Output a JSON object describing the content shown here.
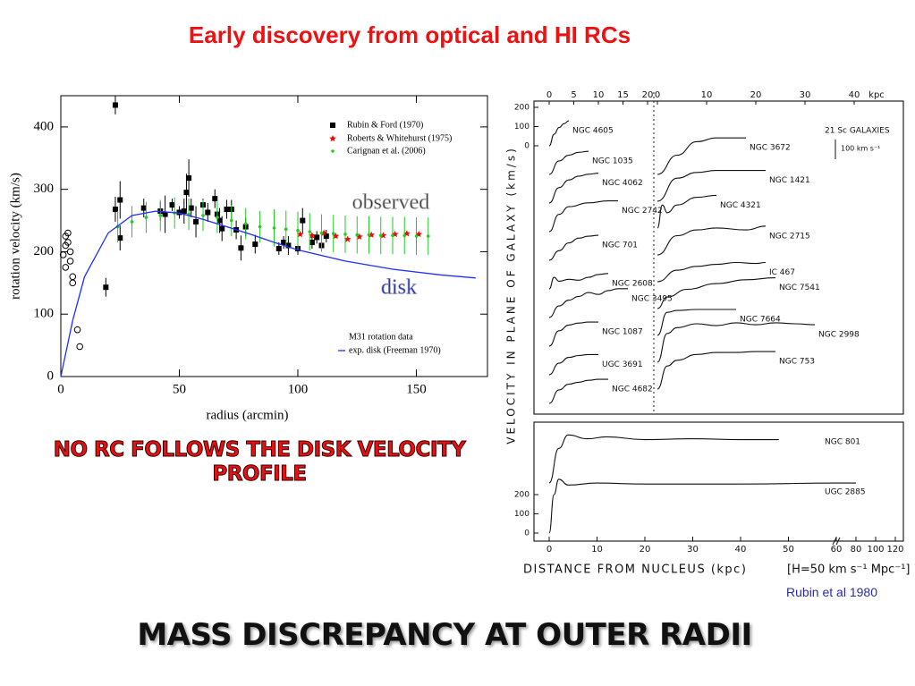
{
  "slide": {
    "title": "Early discovery from optical and HI RCs",
    "left_caption": "NO RC FOLLOWS THE DISK VELOCITY PROFILE",
    "bottom_caption": "MASS DISCREPANCY AT OUTER RADII",
    "credit": "Rubin et al 1980"
  },
  "chart_data": [
    {
      "type": "scatter",
      "legend_title": "M31 rotation data",
      "xlabel": "radius (arcmin)",
      "ylabel": "rotation velocity (km/s)",
      "xlim": [
        0,
        180
      ],
      "ylim": [
        0,
        450
      ],
      "xticks": [
        0,
        50,
        100,
        150
      ],
      "yticks": [
        0,
        100,
        200,
        300,
        400
      ],
      "annotations": [
        "observed",
        "disk"
      ],
      "series": [
        {
          "name": "Rubin & Ford (1970)",
          "color": "#000000",
          "marker": "square",
          "x": [
            19,
            23,
            23,
            25,
            25,
            35,
            42,
            44,
            47,
            50,
            52,
            53,
            54,
            55,
            57,
            60,
            62,
            65,
            66,
            67,
            68,
            70,
            72,
            74,
            76,
            78,
            82,
            92,
            94,
            96,
            100,
            102,
            106,
            108,
            110,
            112
          ],
          "values": [
            143,
            435,
            268,
            283,
            222,
            270,
            265,
            260,
            275,
            263,
            265,
            295,
            318,
            270,
            248,
            275,
            263,
            285,
            260,
            250,
            237,
            268,
            268,
            235,
            206,
            240,
            212,
            205,
            215,
            210,
            205,
            250,
            215,
            223,
            210,
            225
          ],
          "errors": [
            15,
            15,
            20,
            30,
            20,
            15,
            15,
            30,
            10,
            10,
            20,
            30,
            30,
            15,
            25,
            10,
            15,
            15,
            10,
            20,
            20,
            15,
            15,
            15,
            20,
            15,
            15,
            10,
            10,
            15,
            10,
            20,
            10,
            10,
            10,
            10
          ]
        },
        {
          "name": "Roberts & Whitehurst (1975)",
          "color": "#ff0000",
          "marker": "star",
          "x": [
            101,
            106,
            111,
            116,
            121,
            126,
            131,
            136,
            141,
            146,
            151
          ],
          "values": [
            228,
            226,
            230,
            225,
            220,
            224,
            227,
            226,
            228,
            229,
            228
          ]
        },
        {
          "name": "Carignan et al. (2006)",
          "color": "#22cc22",
          "marker": "dot",
          "x": [
            24,
            30,
            36,
            42,
            48,
            54,
            60,
            66,
            72,
            78,
            84,
            90,
            95,
            100,
            105,
            110,
            115,
            120,
            125,
            130,
            135,
            140,
            145,
            150,
            155
          ],
          "values": [
            240,
            248,
            255,
            258,
            262,
            260,
            258,
            255,
            250,
            245,
            240,
            238,
            236,
            234,
            232,
            230,
            229,
            228,
            227,
            227,
            226,
            226,
            226,
            225,
            225
          ],
          "errors": [
            25,
            25,
            25,
            25,
            25,
            25,
            25,
            25,
            25,
            25,
            25,
            30,
            30,
            30,
            30,
            30,
            30,
            30,
            30,
            30,
            30,
            30,
            30,
            30,
            30
          ]
        },
        {
          "color": "#000000",
          "marker": "open-circle",
          "x": [
            1,
            2,
            2,
            3,
            3,
            4,
            4,
            5,
            5,
            7,
            8,
            2
          ],
          "values": [
            195,
            210,
            225,
            230,
            215,
            185,
            200,
            150,
            160,
            75,
            48,
            175
          ]
        },
        {
          "name": "exp. disk (Freeman 1970)",
          "color": "#1f2fff",
          "marker": "line",
          "x": [
            0,
            5,
            10,
            20,
            30,
            40,
            50,
            60,
            70,
            80,
            90,
            100,
            120,
            140,
            160,
            175
          ],
          "values": [
            0,
            90,
            160,
            230,
            258,
            265,
            262,
            252,
            240,
            228,
            215,
            203,
            185,
            172,
            163,
            158
          ]
        }
      ]
    },
    {
      "type": "line",
      "ylabel": "VELOCITY IN PLANE OF GALAXY (km/s)",
      "xlabel": "DISTANCE FROM NUCLEUS (kpc)",
      "note": "[H=50 km s⁻¹ Mpc⁻¹]",
      "legend_title": "21 Sc GALAXIES",
      "scale_label": "100 km s⁻¹",
      "top_axis_unit": "kpc",
      "color": "#111111",
      "xticks_top_left": [
        0,
        5,
        10,
        15,
        20
      ],
      "xticks_top_right": [
        0,
        10,
        20,
        30,
        40
      ],
      "xlim": [
        0,
        120
      ],
      "axis_break": 60,
      "xticks": [
        0,
        10,
        20,
        30,
        40,
        50,
        60,
        80,
        100,
        120
      ],
      "yticks": [
        0,
        100,
        200
      ],
      "series": [
        {
          "name": "NGC 4605",
          "panel": "top-left",
          "x": [
            0,
            1,
            2,
            3,
            4
          ],
          "values": [
            0,
            60,
            95,
            115,
            130
          ]
        },
        {
          "name": "NGC 1035",
          "panel": "top-left",
          "x": [
            0,
            2,
            4,
            6,
            8
          ],
          "values": [
            0,
            70,
            100,
            115,
            120
          ]
        },
        {
          "name": "NGC 4062",
          "panel": "top-left",
          "x": [
            0,
            2,
            4,
            6,
            8,
            10
          ],
          "values": [
            0,
            80,
            120,
            140,
            150,
            155
          ]
        },
        {
          "name": "NGC 2742",
          "panel": "top-left",
          "x": [
            0,
            2,
            4,
            8,
            12,
            14
          ],
          "values": [
            0,
            90,
            130,
            150,
            160,
            160
          ]
        },
        {
          "name": "NGC 701",
          "panel": "top-left",
          "x": [
            0,
            2,
            4,
            6,
            8,
            10
          ],
          "values": [
            0,
            50,
            90,
            115,
            125,
            130
          ]
        },
        {
          "name": "NGC 2608",
          "panel": "top-left",
          "x": [
            0,
            1,
            2,
            4,
            6,
            8,
            10,
            12
          ],
          "values": [
            0,
            60,
            40,
            50,
            45,
            60,
            75,
            80
          ]
        },
        {
          "name": "NGC 3495",
          "panel": "top-left",
          "x": [
            0,
            2,
            4,
            6,
            8,
            10,
            12,
            14,
            16
          ],
          "values": [
            0,
            60,
            90,
            110,
            130,
            120,
            140,
            150,
            150
          ]
        },
        {
          "name": "NGC 1087",
          "panel": "top-left",
          "x": [
            0,
            2,
            4,
            6,
            8,
            10
          ],
          "values": [
            0,
            80,
            110,
            120,
            125,
            125
          ]
        },
        {
          "name": "UGC 3691",
          "panel": "top-left",
          "x": [
            0,
            2,
            4,
            6,
            8,
            10
          ],
          "values": [
            0,
            60,
            90,
            100,
            105,
            105
          ]
        },
        {
          "name": "NGC 4682",
          "panel": "top-left",
          "x": [
            0,
            2,
            4,
            6,
            8,
            10,
            12
          ],
          "values": [
            0,
            70,
            100,
            110,
            120,
            125,
            125
          ]
        },
        {
          "name": "NGC 3672",
          "panel": "top-right",
          "x": [
            0,
            4,
            8,
            12,
            18
          ],
          "values": [
            0,
            100,
            170,
            190,
            190
          ]
        },
        {
          "name": "NGC 1421",
          "panel": "top-right",
          "x": [
            0,
            4,
            8,
            12,
            18,
            22
          ],
          "values": [
            0,
            120,
            150,
            160,
            160,
            160
          ]
        },
        {
          "name": "NGC 4321",
          "panel": "top-right",
          "x": [
            0,
            1,
            2,
            4,
            8,
            12
          ],
          "values": [
            0,
            120,
            80,
            120,
            160,
            170
          ]
        },
        {
          "name": "NGC 2715",
          "panel": "top-right",
          "x": [
            0,
            4,
            8,
            12,
            18,
            22
          ],
          "values": [
            0,
            100,
            130,
            140,
            130,
            150
          ]
        },
        {
          "name": "IC 467",
          "panel": "top-right",
          "x": [
            0,
            4,
            8,
            12,
            16,
            20,
            22
          ],
          "values": [
            0,
            60,
            80,
            90,
            100,
            95,
            100
          ]
        },
        {
          "name": "NGC 7541",
          "panel": "top-right",
          "x": [
            0,
            2,
            6,
            12,
            18,
            24
          ],
          "values": [
            0,
            60,
            100,
            130,
            150,
            160
          ]
        },
        {
          "name": "NGC 7664",
          "panel": "top-right",
          "x": [
            0,
            2,
            4,
            8,
            12,
            16
          ],
          "values": [
            0,
            120,
            130,
            135,
            135,
            135
          ]
        },
        {
          "name": "NGC 2998",
          "panel": "top-right",
          "x": [
            0,
            2,
            4,
            8,
            12,
            16,
            20,
            24,
            28,
            32
          ],
          "values": [
            0,
            150,
            180,
            200,
            190,
            205,
            195,
            205,
            200,
            195
          ]
        },
        {
          "name": "NGC 753",
          "panel": "top-right",
          "x": [
            0,
            2,
            4,
            8,
            12,
            16,
            20,
            24
          ],
          "values": [
            0,
            120,
            150,
            180,
            190,
            190,
            195,
            195
          ]
        },
        {
          "name": "NGC 801",
          "panel": "bottom",
          "x": [
            0,
            2,
            4,
            8,
            12,
            20,
            30,
            40,
            48
          ],
          "values": [
            0,
            180,
            250,
            230,
            240,
            225,
            230,
            225,
            225
          ]
        },
        {
          "name": "UGC 2885",
          "panel": "bottom",
          "x": [
            0,
            1,
            2,
            4,
            10,
            20,
            40,
            60,
            80
          ],
          "values": [
            0,
            200,
            280,
            250,
            260,
            255,
            255,
            260,
            260
          ]
        }
      ]
    }
  ]
}
